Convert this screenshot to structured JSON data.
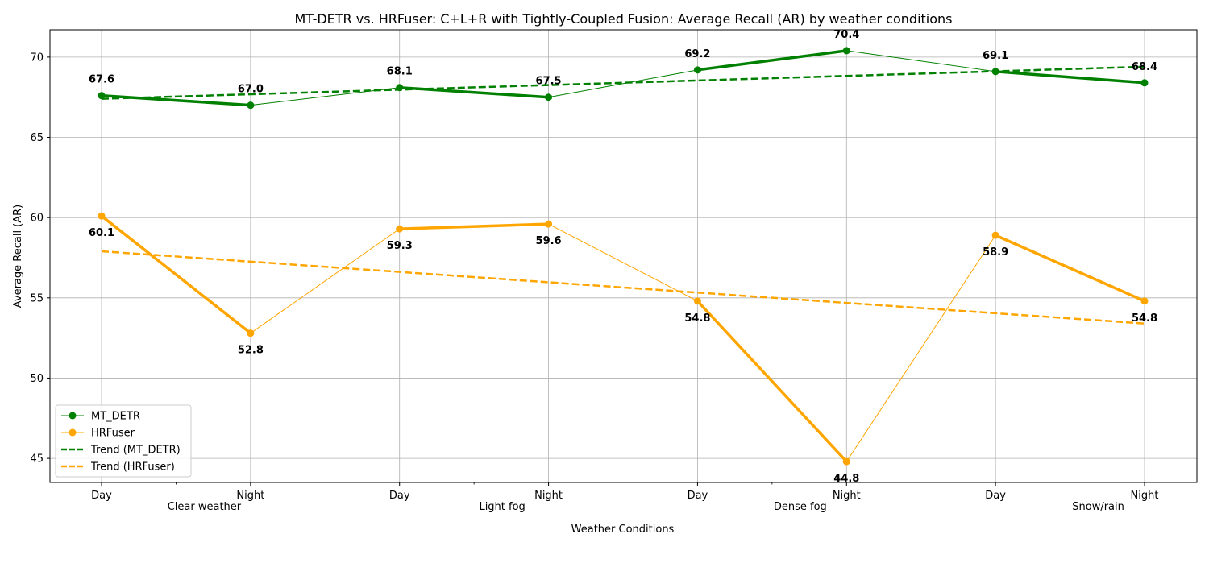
{
  "chart_data": {
    "type": "line",
    "title": "MT-DETR vs. HRFuser: C+L+R with Tightly-Coupled Fusion: Average Recall (AR) by weather conditions",
    "xlabel": "Weather Conditions",
    "ylabel": "Average Recall (AR)",
    "categories": [
      "Day",
      "Night",
      "Day",
      "Night",
      "Day",
      "Night",
      "Day",
      "Night"
    ],
    "groups": [
      "Clear weather",
      "Light fog",
      "Dense fog",
      "Snow/rain"
    ],
    "ylim": [
      43.5,
      71.7
    ],
    "yticks": [
      45,
      50,
      55,
      60,
      65,
      70
    ],
    "grid": true,
    "legend_position": "lower-left",
    "series": [
      {
        "name": "MT_DETR",
        "color": "#008000",
        "values": [
          67.6,
          67.0,
          68.1,
          67.5,
          69.2,
          70.4,
          69.1,
          68.4
        ],
        "labels": [
          "67.6",
          "67.0",
          "68.1",
          "67.5",
          "69.2",
          "70.4",
          "69.1",
          "68.4"
        ]
      },
      {
        "name": "HRFuser",
        "color": "#FFA500",
        "values": [
          60.1,
          52.8,
          59.3,
          59.6,
          54.8,
          44.8,
          58.9,
          54.8
        ],
        "labels": [
          "60.1",
          "52.8",
          "59.3",
          "59.6",
          "54.8",
          "44.8",
          "58.9",
          "54.8"
        ]
      }
    ],
    "trends": [
      {
        "name": "Trend (MT_DETR)",
        "color": "#008000",
        "start": 67.4,
        "end": 69.4
      },
      {
        "name": "Trend (HRFuser)",
        "color": "#FFA500",
        "start": 57.9,
        "end": 53.4
      }
    ]
  }
}
